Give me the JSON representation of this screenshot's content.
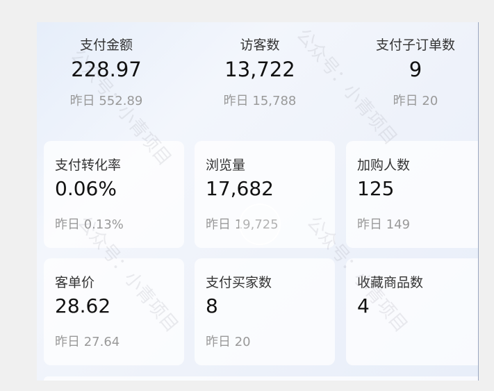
{
  "top_metrics": [
    {
      "label": "支付金额",
      "value": "228.97",
      "yesterday": "昨日 552.89"
    },
    {
      "label": "访客数",
      "value": "13,722",
      "yesterday": "昨日 15,788"
    },
    {
      "label": "支付子订单数",
      "value": "9",
      "yesterday": "昨日 20"
    }
  ],
  "cards": [
    {
      "label": "支付转化率",
      "value": "0.06%",
      "yesterday": "昨日 0.13%"
    },
    {
      "label": "浏览量",
      "value": "17,682",
      "yesterday": "昨日 19,725"
    },
    {
      "label": "加购人数",
      "value": "125",
      "yesterday": "昨日 149"
    },
    {
      "label": "客单价",
      "value": "28.62",
      "yesterday": "昨日 27.64"
    },
    {
      "label": "支付买家数",
      "value": "8",
      "yesterday": "昨日 20"
    },
    {
      "label": "收藏商品数",
      "value": "4",
      "yesterday": ""
    }
  ],
  "watermark": "公众号：小青项目"
}
